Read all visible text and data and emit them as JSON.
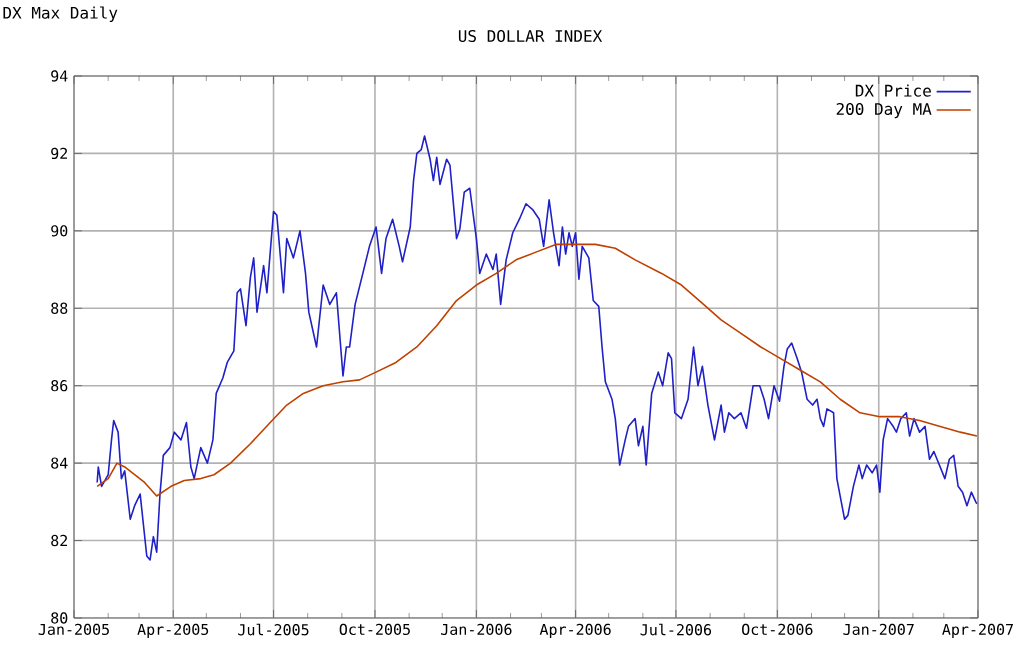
{
  "chart_data": {
    "type": "line",
    "title": "US DOLLAR INDEX",
    "subtitle": "DX Max Daily",
    "xlim": [
      "2005-01-01",
      "2007-04-01"
    ],
    "xticks": [
      {
        "value": "2005-01-01",
        "label": "Jan-2005"
      },
      {
        "value": "2005-02-01",
        "label": null
      },
      {
        "value": "2005-03-01",
        "label": null
      },
      {
        "value": "2005-04-01",
        "label": "Apr-2005"
      },
      {
        "value": "2005-05-01",
        "label": null
      },
      {
        "value": "2005-06-01",
        "label": null
      },
      {
        "value": "2005-07-01",
        "label": "Jul-2005"
      },
      {
        "value": "2005-08-01",
        "label": null
      },
      {
        "value": "2005-09-01",
        "label": null
      },
      {
        "value": "2005-10-01",
        "label": "Oct-2005"
      },
      {
        "value": "2005-11-01",
        "label": null
      },
      {
        "value": "2005-12-01",
        "label": null
      },
      {
        "value": "2006-01-01",
        "label": "Jan-2006"
      },
      {
        "value": "2006-02-01",
        "label": null
      },
      {
        "value": "2006-03-01",
        "label": null
      },
      {
        "value": "2006-04-01",
        "label": "Apr-2006"
      },
      {
        "value": "2006-05-01",
        "label": null
      },
      {
        "value": "2006-06-01",
        "label": null
      },
      {
        "value": "2006-07-01",
        "label": "Jul-2006"
      },
      {
        "value": "2006-08-01",
        "label": null
      },
      {
        "value": "2006-09-01",
        "label": null
      },
      {
        "value": "2006-10-01",
        "label": "Oct-2006"
      },
      {
        "value": "2006-11-01",
        "label": null
      },
      {
        "value": "2006-12-01",
        "label": null
      },
      {
        "value": "2007-01-01",
        "label": "Jan-2007"
      },
      {
        "value": "2007-02-01",
        "label": null
      },
      {
        "value": "2007-03-01",
        "label": null
      },
      {
        "value": "2007-04-01",
        "label": "Apr-2007"
      }
    ],
    "ylim": [
      80,
      94
    ],
    "yticks": [
      80,
      82,
      84,
      86,
      88,
      90,
      92,
      94
    ],
    "grid": true,
    "legend": "top right",
    "series": [
      {
        "name": "DX Price",
        "color": "#2020c8",
        "x": [
          "2005-01-22",
          "2005-01-23",
          "2005-01-26",
          "2005-02-01",
          "2005-02-04",
          "2005-02-06",
          "2005-02-10",
          "2005-02-13",
          "2005-02-16",
          "2005-02-21",
          "2005-02-25",
          "2005-03-02",
          "2005-03-08",
          "2005-03-11",
          "2005-03-14",
          "2005-03-17",
          "2005-03-20",
          "2005-03-23",
          "2005-03-29",
          "2005-04-02",
          "2005-04-08",
          "2005-04-13",
          "2005-04-17",
          "2005-04-20",
          "2005-04-26",
          "2005-05-02",
          "2005-05-07",
          "2005-05-10",
          "2005-05-16",
          "2005-05-20",
          "2005-05-26",
          "2005-05-29",
          "2005-06-01",
          "2005-06-06",
          "2005-06-10",
          "2005-06-13",
          "2005-06-16",
          "2005-06-22",
          "2005-06-25",
          "2005-07-01",
          "2005-07-04",
          "2005-07-10",
          "2005-07-13",
          "2005-07-19",
          "2005-07-25",
          "2005-07-30",
          "2005-08-02",
          "2005-08-09",
          "2005-08-15",
          "2005-08-21",
          "2005-08-27",
          "2005-09-02",
          "2005-09-05",
          "2005-09-08",
          "2005-09-13",
          "2005-09-20",
          "2005-09-26",
          "2005-10-02",
          "2005-10-07",
          "2005-10-11",
          "2005-10-17",
          "2005-10-23",
          "2005-10-26",
          "2005-11-02",
          "2005-11-05",
          "2005-11-08",
          "2005-11-12",
          "2005-11-15",
          "2005-11-20",
          "2005-11-23",
          "2005-11-26",
          "2005-11-29",
          "2005-12-05",
          "2005-12-08",
          "2005-12-14",
          "2005-12-17",
          "2005-12-21",
          "2005-12-26",
          "2006-01-01",
          "2006-01-04",
          "2006-01-10",
          "2006-01-16",
          "2006-01-19",
          "2006-01-23",
          "2006-01-28",
          "2006-02-03",
          "2006-02-09",
          "2006-02-15",
          "2006-02-21",
          "2006-02-27",
          "2006-03-03",
          "2006-03-08",
          "2006-03-12",
          "2006-03-17",
          "2006-03-20",
          "2006-03-23",
          "2006-03-26",
          "2006-03-29",
          "2006-04-01",
          "2006-04-04",
          "2006-04-07",
          "2006-04-13",
          "2006-04-17",
          "2006-04-22",
          "2006-04-25",
          "2006-04-28",
          "2006-05-04",
          "2006-05-07",
          "2006-05-11",
          "2006-05-16",
          "2006-05-19",
          "2006-05-25",
          "2006-05-28",
          "2006-06-01",
          "2006-06-04",
          "2006-06-09",
          "2006-06-15",
          "2006-06-19",
          "2006-06-24",
          "2006-06-27",
          "2006-06-30",
          "2006-07-06",
          "2006-07-12",
          "2006-07-17",
          "2006-07-21",
          "2006-07-25",
          "2006-07-30",
          "2006-08-05",
          "2006-08-11",
          "2006-08-14",
          "2006-08-18",
          "2006-08-23",
          "2006-08-29",
          "2006-09-03",
          "2006-09-09",
          "2006-09-15",
          "2006-09-19",
          "2006-09-23",
          "2006-09-28",
          "2006-10-03",
          "2006-10-07",
          "2006-10-10",
          "2006-10-14",
          "2006-10-19",
          "2006-10-23",
          "2006-10-28",
          "2006-11-02",
          "2006-11-06",
          "2006-11-09",
          "2006-11-12",
          "2006-11-15",
          "2006-11-21",
          "2006-11-24",
          "2006-11-27",
          "2006-12-01",
          "2006-12-04",
          "2006-12-09",
          "2006-12-14",
          "2006-12-17",
          "2006-12-21",
          "2006-12-26",
          "2006-12-30",
          "2007-01-02",
          "2007-01-05",
          "2007-01-09",
          "2007-01-14",
          "2007-01-17",
          "2007-01-21",
          "2007-01-26",
          "2007-01-29",
          "2007-02-02",
          "2007-02-07",
          "2007-02-12",
          "2007-02-16",
          "2007-02-20",
          "2007-02-25",
          "2007-03-02",
          "2007-03-06",
          "2007-03-10",
          "2007-03-14",
          "2007-03-18",
          "2007-03-22",
          "2007-03-26",
          "2007-03-30",
          "2007-03-31"
        ],
        "values": [
          83.5,
          83.9,
          83.4,
          83.7,
          84.6,
          85.1,
          84.8,
          83.6,
          83.8,
          82.55,
          82.9,
          83.2,
          81.6,
          81.5,
          82.1,
          81.7,
          83.2,
          84.2,
          84.4,
          84.8,
          84.6,
          85.05,
          83.9,
          83.6,
          84.4,
          84.0,
          84.6,
          85.8,
          86.2,
          86.6,
          86.9,
          88.4,
          88.5,
          87.55,
          88.8,
          89.3,
          87.9,
          89.1,
          88.4,
          90.5,
          90.4,
          88.4,
          89.8,
          89.3,
          90.0,
          88.9,
          87.9,
          87.0,
          88.6,
          88.1,
          88.4,
          86.25,
          87.0,
          87.0,
          88.1,
          88.9,
          89.6,
          90.1,
          88.9,
          89.8,
          90.3,
          89.6,
          89.2,
          90.1,
          91.3,
          92.0,
          92.1,
          92.45,
          91.85,
          91.3,
          91.9,
          91.2,
          91.85,
          91.7,
          89.8,
          90.05,
          91.0,
          91.1,
          89.8,
          88.9,
          89.4,
          89.0,
          89.4,
          88.1,
          89.25,
          89.95,
          90.3,
          90.7,
          90.55,
          90.3,
          89.6,
          90.8,
          89.95,
          89.1,
          90.1,
          89.4,
          89.95,
          89.6,
          89.95,
          88.75,
          89.6,
          89.3,
          88.2,
          88.05,
          87.0,
          86.1,
          85.65,
          85.15,
          83.95,
          84.6,
          84.95,
          85.15,
          84.45,
          84.95,
          83.95,
          85.8,
          86.35,
          86.0,
          86.85,
          86.7,
          85.3,
          85.15,
          85.65,
          87.0,
          86.0,
          86.5,
          85.5,
          84.6,
          85.5,
          84.8,
          85.3,
          85.15,
          85.3,
          84.9,
          86.0,
          86.0,
          85.65,
          85.15,
          86.0,
          85.6,
          86.5,
          86.95,
          87.1,
          86.7,
          86.35,
          85.65,
          85.5,
          85.65,
          85.15,
          84.95,
          85.4,
          85.3,
          83.6,
          83.15,
          82.55,
          82.65,
          83.4,
          83.95,
          83.6,
          83.95,
          83.75,
          83.95,
          83.25,
          84.6,
          85.15,
          84.95,
          84.8,
          85.15,
          85.3,
          84.7,
          85.15,
          84.8,
          84.95,
          84.1,
          84.3,
          83.95,
          83.6,
          84.1,
          84.2,
          83.4,
          83.25,
          82.9,
          83.25,
          83.0,
          82.95
        ]
      },
      {
        "name": "200 Day MA",
        "color": "#c04000",
        "x": [
          "2005-01-22",
          "2005-02-01",
          "2005-02-09",
          "2005-02-16",
          "2005-02-25",
          "2005-03-06",
          "2005-03-17",
          "2005-03-30",
          "2005-04-11",
          "2005-04-26",
          "2005-05-08",
          "2005-05-23",
          "2005-06-10",
          "2005-06-28",
          "2005-07-13",
          "2005-07-28",
          "2005-08-15",
          "2005-09-02",
          "2005-09-17",
          "2005-10-02",
          "2005-10-20",
          "2005-11-08",
          "2005-11-26",
          "2005-12-14",
          "2006-01-01",
          "2006-01-19",
          "2006-02-06",
          "2006-02-24",
          "2006-03-14",
          "2006-03-20",
          "2006-04-19",
          "2006-05-07",
          "2006-05-25",
          "2006-06-18",
          "2006-07-06",
          "2006-07-24",
          "2006-08-11",
          "2006-08-29",
          "2006-09-16",
          "2006-10-04",
          "2006-10-22",
          "2006-11-09",
          "2006-11-27",
          "2006-12-15",
          "2007-01-02",
          "2007-01-20",
          "2007-02-07",
          "2007-02-25",
          "2007-03-16",
          "2007-03-31"
        ],
        "values": [
          83.4,
          83.6,
          84.0,
          83.9,
          83.7,
          83.5,
          83.15,
          83.4,
          83.55,
          83.6,
          83.7,
          84.0,
          84.5,
          85.05,
          85.5,
          85.8,
          86.0,
          86.1,
          86.15,
          86.35,
          86.6,
          87.0,
          87.55,
          88.2,
          88.6,
          88.9,
          89.25,
          89.45,
          89.65,
          89.65,
          89.65,
          89.55,
          89.25,
          88.9,
          88.6,
          88.15,
          87.7,
          87.35,
          87.0,
          86.7,
          86.4,
          86.1,
          85.65,
          85.3,
          85.2,
          85.2,
          85.1,
          84.95,
          84.8,
          84.7
        ]
      }
    ]
  }
}
